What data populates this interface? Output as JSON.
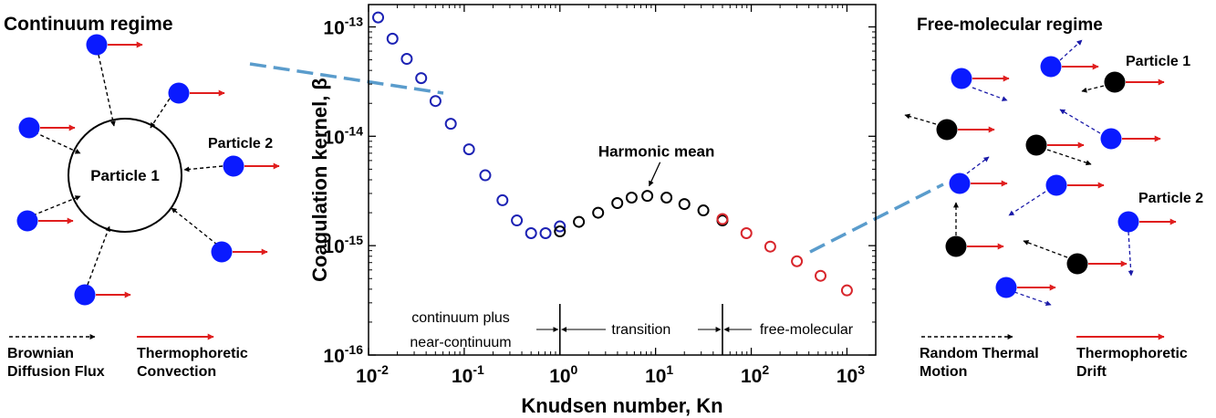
{
  "left_panel": {
    "title": "Continuum regime",
    "center_particle_label": "Particle 1",
    "particle_label": "Particle 2",
    "legend": {
      "brownian_line1": "Brownian",
      "brownian_line2": "Diffusion Flux",
      "thermo_line1": "Thermophoretic",
      "thermo_line2": "Convection"
    }
  },
  "right_panel": {
    "title": "Free-molecular regime",
    "particle1_label": "Particle 1",
    "particle2_label": "Particle 2",
    "legend": {
      "random_line1": "Random Thermal",
      "random_line2": "Motion",
      "thermo_line1": "Thermophoretic",
      "thermo_line2": "Drift"
    }
  },
  "colors": {
    "blue_particle": "#0a1aff",
    "black_particle": "#000000",
    "red_arrow": "#e01e1e",
    "blue_dashed_arrow": "#1a1aa8",
    "callout_line": "#5a9ccc",
    "marker_blue": "#1c22b4",
    "marker_black": "#000000",
    "marker_red": "#d8262c"
  },
  "chart_data": {
    "type": "scatter",
    "xlabel": "Knudsen number, Kn",
    "ylabel": "Coagulation kernel, β",
    "xscale": "log",
    "yscale": "log",
    "xlim": [
      0.01,
      2000
    ],
    "ylim": [
      1e-16,
      1.6e-13
    ],
    "xticks": [
      {
        "base": "10",
        "exp": "-2",
        "value": 0.01
      },
      {
        "base": "10",
        "exp": "-1",
        "value": 0.1
      },
      {
        "base": "10",
        "exp": "0",
        "value": 1
      },
      {
        "base": "10",
        "exp": "1",
        "value": 10
      },
      {
        "base": "10",
        "exp": "2",
        "value": 100
      },
      {
        "base": "10",
        "exp": "3",
        "value": 1000
      }
    ],
    "yticks": [
      {
        "base": "10",
        "exp": "-16",
        "value": 1e-16
      },
      {
        "base": "10",
        "exp": "-15",
        "value": 1e-15
      },
      {
        "base": "10",
        "exp": "-14",
        "value": 1e-14
      },
      {
        "base": "10",
        "exp": "-13",
        "value": 1e-13
      }
    ],
    "regimes": [
      {
        "line1": "continuum plus",
        "line2": "near-continuum"
      },
      {
        "line1": "transition",
        "line2": ""
      },
      {
        "line1": "free-molecular",
        "line2": ""
      }
    ],
    "regime_boundaries": [
      1,
      50
    ],
    "annotation": {
      "text": "Harmonic mean",
      "x": 8.2,
      "y": 2.9e-15
    },
    "series": [
      {
        "color": "#1c22b4",
        "x": [
          0.0126,
          0.0178,
          0.0251,
          0.0355,
          0.0501,
          0.0724,
          0.1122,
          0.166,
          0.251,
          0.355,
          0.5,
          0.708,
          1.0
        ],
        "y": [
          1.22e-13,
          7.8e-14,
          5.1e-14,
          3.4e-14,
          2.1e-14,
          1.3e-14,
          7.6e-15,
          4.4e-15,
          2.6e-15,
          1.7e-15,
          1.3e-15,
          1.3e-15,
          1.5e-15
        ]
      },
      {
        "color": "#000000",
        "x": [
          1.0,
          1.58,
          2.51,
          3.98,
          5.62,
          8.2,
          13.0,
          20.0,
          31.6,
          50.0
        ],
        "y": [
          1.35e-15,
          1.65e-15,
          2e-15,
          2.45e-15,
          2.75e-15,
          2.85e-15,
          2.75e-15,
          2.4e-15,
          2.1e-15,
          1.7e-15
        ]
      },
      {
        "color": "#d8262c",
        "x": [
          50.0,
          89.0,
          158.0,
          300.0,
          530.0,
          1000.0
        ],
        "y": [
          1.75e-15,
          1.3e-15,
          9.8e-16,
          7.2e-16,
          5.3e-16,
          3.9e-16
        ]
      }
    ]
  }
}
